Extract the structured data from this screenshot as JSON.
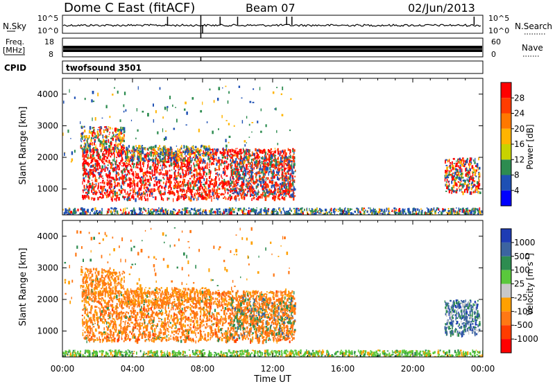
{
  "header": {
    "station": "Dome C East (fitACF)",
    "beam": "Beam 07",
    "date": "02/Jun/2013"
  },
  "aux": {
    "nsky_label": "N.Sky",
    "nsky_ticks": [
      "10^5",
      "10^0"
    ],
    "nsearch_label": "N.Search",
    "nsearch_ticks": [
      "10^5",
      "10^0"
    ],
    "freq_label_1": "Freq.",
    "freq_label_2": "[MHz]",
    "freq_ticks": [
      "18",
      "8"
    ],
    "nave_label": "Nave",
    "nave_ticks": [
      "60",
      "0"
    ],
    "cpid_label": "CPID",
    "cpid_value": "twofsound 3501"
  },
  "panels": {
    "ylabel": "Slant Range [km]",
    "yticks": [
      "4000",
      "3000",
      "2000",
      "1000"
    ],
    "xlabel": "Time UT",
    "xticks": [
      "00:00",
      "04:00",
      "08:00",
      "12:00",
      "16:00",
      "20:00",
      "00:00"
    ]
  },
  "colorbars": {
    "power": {
      "label": "Power [dB]",
      "ticks": [
        "28",
        "24",
        "20",
        "16",
        "12",
        "8",
        "4"
      ],
      "colors": [
        "#ff0000",
        "#ff3c00",
        "#ff7800",
        "#ffb400",
        "#c8d200",
        "#2d8c50",
        "#1e50b4",
        "#0000ff"
      ]
    },
    "velocity": {
      "label": "Velocity [m s",
      "label_sup": "-1",
      "label_end": "]",
      "ticks": [
        "1000",
        "500",
        "100",
        "25",
        "-25",
        "-100",
        "-500",
        "-1000"
      ],
      "colors": [
        "#1e3cb4",
        "#3c64a0",
        "#2d8c50",
        "#5ac83c",
        "#c8c8c8",
        "#ffa000",
        "#ff7814",
        "#ff3c00",
        "#ff0000"
      ]
    }
  },
  "chart_data": {
    "type": "heatmap",
    "x_range": [
      "00:00",
      "24:00"
    ],
    "y_range_km": [
      180,
      4500
    ],
    "power_scale_db": [
      0,
      32
    ],
    "velocity_scale_ms": [
      -1000,
      1000
    ],
    "echo_regions": [
      {
        "time_start": 1.0,
        "time_end": 13.2,
        "range_km": [
          700,
          2300
        ],
        "power_db": 26,
        "velocity": "-100 to -500"
      },
      {
        "time_start": 1.0,
        "time_end": 3.5,
        "range_km": [
          2300,
          3000
        ],
        "power_db": 18,
        "velocity": "-100"
      },
      {
        "time_start": 21.8,
        "time_end": 23.8,
        "range_km": [
          900,
          2000
        ],
        "power_db": 22,
        "velocity": "100 to 500"
      },
      {
        "time_start": 0.0,
        "time_end": 24.0,
        "range_km": [
          180,
          450
        ],
        "power_db": 10,
        "velocity": "25 to 100"
      }
    ]
  }
}
